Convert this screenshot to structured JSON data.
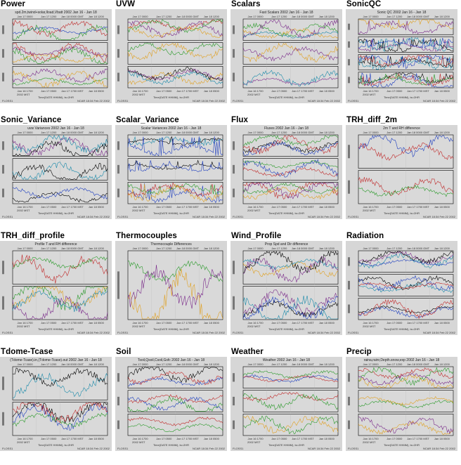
{
  "cells": [
    {
      "label": "Power",
      "plot_title": "spd.2m,twind+solar,Iload,Vbatt 2002 Jan 16 - Jan 18",
      "panels": 3,
      "kind": "line"
    },
    {
      "label": "UVW",
      "plot_title": "",
      "panels": 3,
      "kind": "line"
    },
    {
      "label": "Scalars",
      "plot_title": "Fast Scalars 2002 Jan 16 - Jan 18",
      "panels": 3,
      "kind": "line"
    },
    {
      "label": "SonicQC",
      "plot_title": "Sonic QC 2002 Jan 16 - Jan 18",
      "panels": 4,
      "kind": "spike"
    },
    {
      "label": "Sonic_Variance",
      "plot_title": "uvw Variances 2002 Jan 16 - Jan 18",
      "panels": 3,
      "kind": "line"
    },
    {
      "label": "Scalar_Variance",
      "plot_title": "Scalar Variances 2002 Jan 16 - Jan 18",
      "panels": 3,
      "kind": "spike"
    },
    {
      "label": "Flux",
      "plot_title": "Fluxes 2002 Jan 16 - Jan 18",
      "panels": 3,
      "kind": "line"
    },
    {
      "label": "TRH_diff_2m",
      "plot_title": "2m T and RH difference",
      "panels": 2,
      "kind": "line"
    },
    {
      "label": "TRH_diff_profile",
      "plot_title": "Profile T and RH difference",
      "panels": 2,
      "kind": "line"
    },
    {
      "label": "Thermocouples",
      "plot_title": "Thermocouple Differences",
      "panels": 1,
      "kind": "line"
    },
    {
      "label": "Wind_Profile",
      "plot_title": "Prop Spd and Dir difference",
      "panels": 2,
      "kind": "line"
    },
    {
      "label": "Radiation",
      "plot_title": "",
      "panels": 3,
      "kind": "line"
    },
    {
      "label": "Tdome-Tcase",
      "plot_title": "(Tdome-Tcase).in,(Tdome-Tcase).out 2002 Jan 16 - Jan 18",
      "panels": 2,
      "kind": "line"
    },
    {
      "label": "Soil",
      "plot_title": "Tsoil,Qsoil,Csoil,Gsfc 2002 Jan 16 - Jan 18",
      "panels": 3,
      "kind": "line"
    },
    {
      "label": "Weather",
      "plot_title": "Weather 2002 Jan 16 - Jan 18",
      "panels": 3,
      "kind": "line"
    },
    {
      "label": "Precip",
      "plot_title": "raina,rainr,Depth.snow,exp 2002 Jan 16 - Jan 18",
      "panels": 3,
      "kind": "line"
    }
  ],
  "top_axis_ticks": [
    "Jan 17 0000",
    "Jan 17 1200",
    "Jan 18 0000 GMT",
    "Jan 18 1200"
  ],
  "bottom_axis_ticks": [
    "Jan 16 1700",
    "Jan 17 0500",
    "Jan 17 1700 MST",
    "Jan 18 0500"
  ],
  "year_label": "2002 MST",
  "time_label": "Time(DATE HHMM), ts=2HR",
  "footer_left": "FLOSS1",
  "footer_right": "NCAR 18:34 Feb 22 2002",
  "colors": {
    "panel_bg": "#d6d6d6",
    "plot_bg": "#d9d9d9",
    "series": [
      "#1f3fbf",
      "#c02a2a",
      "#2a9a2a",
      "#e0a020",
      "#7a2a8a",
      "#1a8aaa",
      "#000000"
    ]
  }
}
